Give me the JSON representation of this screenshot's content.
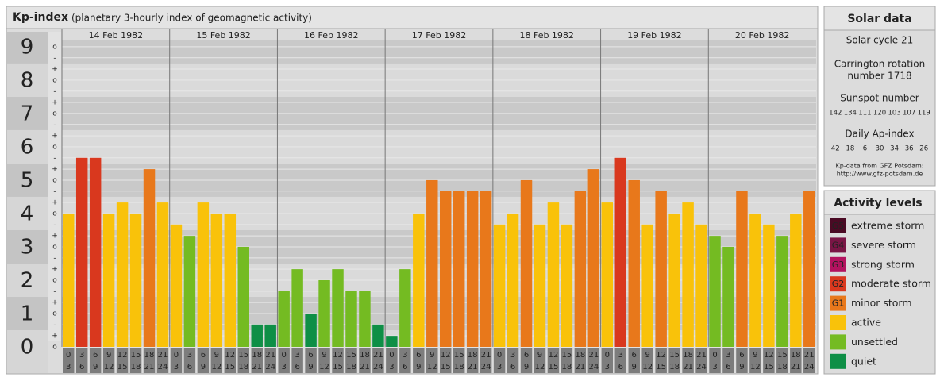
{
  "chart_data": {
    "type": "bar",
    "title": "Kp-index",
    "subtitle": "(planetary 3-hourly index of geomagnetic activity)",
    "ylim": [
      0,
      9.45
    ],
    "yticks": [
      0,
      1,
      2,
      3,
      4,
      5,
      6,
      7,
      8,
      9
    ],
    "minor_ticks": [
      {
        "value": 0,
        "label": "o"
      },
      {
        "value": 0.33,
        "label": "+"
      },
      {
        "value": 0.67,
        "label": "-"
      },
      {
        "value": 1,
        "label": "o"
      },
      {
        "value": 1.33,
        "label": "+"
      },
      {
        "value": 1.67,
        "label": "-"
      },
      {
        "value": 2,
        "label": "o"
      },
      {
        "value": 2.33,
        "label": "+"
      },
      {
        "value": 2.67,
        "label": "-"
      },
      {
        "value": 3,
        "label": "o"
      },
      {
        "value": 3.33,
        "label": "+"
      },
      {
        "value": 3.67,
        "label": "-"
      },
      {
        "value": 4,
        "label": "o"
      },
      {
        "value": 4.33,
        "label": "+"
      },
      {
        "value": 4.67,
        "label": "-"
      },
      {
        "value": 5,
        "label": "o"
      },
      {
        "value": 5.33,
        "label": "+"
      },
      {
        "value": 5.67,
        "label": "-"
      },
      {
        "value": 6,
        "label": "o"
      },
      {
        "value": 6.33,
        "label": "+"
      },
      {
        "value": 6.67,
        "label": "-"
      },
      {
        "value": 7,
        "label": "o"
      },
      {
        "value": 7.33,
        "label": "+"
      },
      {
        "value": 7.67,
        "label": "-"
      },
      {
        "value": 8,
        "label": "o"
      },
      {
        "value": 8.33,
        "label": "+"
      },
      {
        "value": 8.67,
        "label": "-"
      },
      {
        "value": 9,
        "label": "o"
      }
    ],
    "grid": true,
    "hour_labels": [
      [
        "0",
        "3"
      ],
      [
        "3",
        "6"
      ],
      [
        "6",
        "9"
      ],
      [
        "9",
        "12"
      ],
      [
        "12",
        "15"
      ],
      [
        "15",
        "18"
      ],
      [
        "18",
        "21"
      ],
      [
        "21",
        "24"
      ]
    ],
    "days": [
      {
        "date": "14 Feb 1982",
        "values": [
          4,
          5.67,
          5.67,
          4,
          4.33,
          4,
          5.33,
          4.33
        ],
        "colors": [
          "#f9c20a",
          "#d9381e",
          "#d9381e",
          "#f9c20a",
          "#f9c20a",
          "#f9c20a",
          "#e8781b",
          "#f9c20a"
        ]
      },
      {
        "date": "15 Feb 1982",
        "values": [
          3.67,
          3.33,
          4.33,
          4,
          4,
          3,
          0.67,
          0.67
        ],
        "colors": [
          "#f9c20a",
          "#74bb22",
          "#f9c20a",
          "#f9c20a",
          "#f9c20a",
          "#74bb22",
          "#0e8f46",
          "#0e8f46"
        ]
      },
      {
        "date": "16 Feb 1982",
        "values": [
          1.67,
          2.33,
          1,
          2,
          2.33,
          1.67,
          1.67,
          0.67
        ],
        "colors": [
          "#74bb22",
          "#74bb22",
          "#0e8f46",
          "#74bb22",
          "#74bb22",
          "#74bb22",
          "#74bb22",
          "#0e8f46"
        ]
      },
      {
        "date": "17 Feb 1982",
        "values": [
          0.33,
          2.33,
          4,
          5,
          4.67,
          4.67,
          4.67,
          4.67
        ],
        "colors": [
          "#0e8f46",
          "#74bb22",
          "#f9c20a",
          "#e8781b",
          "#e8781b",
          "#e8781b",
          "#e8781b",
          "#e8781b"
        ]
      },
      {
        "date": "18 Feb 1982",
        "values": [
          3.67,
          4,
          5,
          3.67,
          4.33,
          3.67,
          4.67,
          5.33
        ],
        "colors": [
          "#f9c20a",
          "#f9c20a",
          "#e8781b",
          "#f9c20a",
          "#f9c20a",
          "#f9c20a",
          "#e8781b",
          "#e8781b"
        ]
      },
      {
        "date": "19 Feb 1982",
        "values": [
          4.33,
          5.67,
          5,
          3.67,
          4.67,
          4,
          4.33,
          3.67
        ],
        "colors": [
          "#f9c20a",
          "#d9381e",
          "#e8781b",
          "#f9c20a",
          "#e8781b",
          "#f9c20a",
          "#f9c20a",
          "#f9c20a"
        ]
      },
      {
        "date": "20 Feb 1982",
        "values": [
          3.33,
          3,
          4.67,
          4,
          3.67,
          3.33,
          4,
          4.67
        ],
        "colors": [
          "#74bb22",
          "#74bb22",
          "#e8781b",
          "#f9c20a",
          "#f9c20a",
          "#74bb22",
          "#f9c20a",
          "#e8781b"
        ]
      }
    ]
  },
  "solar_data": {
    "title": "Solar data",
    "solar_cycle": "Solar cycle 21",
    "carrington": [
      "Carrington rotation",
      "number 1718"
    ],
    "sunspot_title": "Sunspot number",
    "sunspot_values": [
      142,
      134,
      111,
      120,
      103,
      107,
      119
    ],
    "ap_title": "Daily Ap-index",
    "ap_values": [
      42,
      18,
      6,
      30,
      34,
      36,
      26
    ],
    "source": [
      "Kp-data from GFZ Potsdam:",
      "http://www.gfz-potsdam.de"
    ]
  },
  "activity_levels": {
    "title": "Activity levels",
    "items": [
      {
        "badge": "G5",
        "label": "extreme storm",
        "color": "#4a0a24"
      },
      {
        "badge": "G4",
        "label": "severe storm",
        "color": "#7a1545"
      },
      {
        "badge": "G3",
        "label": "strong storm",
        "color": "#b3125f"
      },
      {
        "badge": "G2",
        "label": "moderate storm",
        "color": "#d9381e"
      },
      {
        "badge": "G1",
        "label": "minor storm",
        "color": "#e8781b"
      },
      {
        "label": "active",
        "color": "#f9c20a"
      },
      {
        "label": "unsettled",
        "color": "#74bb22"
      },
      {
        "label": "quiet",
        "color": "#0e8f46"
      }
    ]
  }
}
